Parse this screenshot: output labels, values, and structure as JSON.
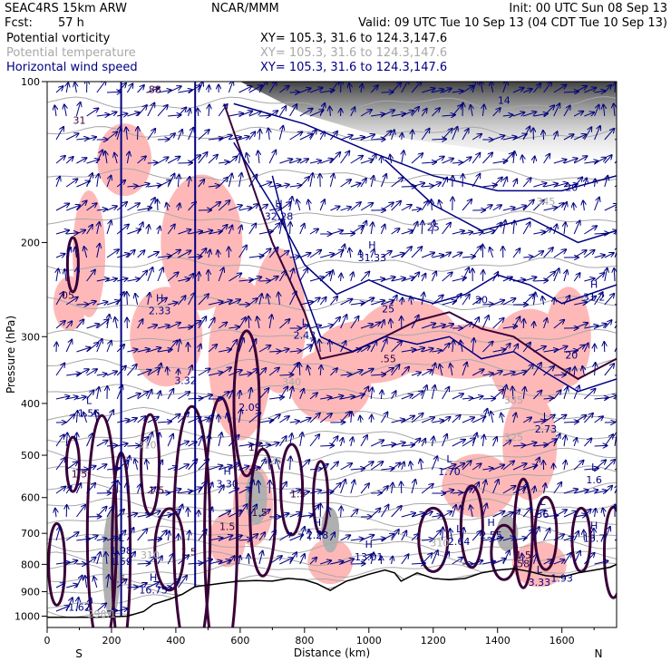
{
  "header": {
    "model": "SEAC4RS 15km ARW",
    "org": "NCAR/MMM",
    "init": "Init: 00 UTC Sun 08 Sep 13",
    "fcst_label": "Fcst:",
    "fcst_value": "57 h",
    "valid": "Valid: 09 UTC Tue 10 Sep 13 (04 CDT Tue 10 Sep 13)"
  },
  "fields": [
    {
      "name": "Potential vorticity",
      "xy": "XY= 105.3, 31.6 to 124.3,147.6",
      "color": "#000000"
    },
    {
      "name": "Potential temperature",
      "xy": "XY= 105.3, 31.6 to 124.3,147.6",
      "color": "#a8a8a8"
    },
    {
      "name": "Horizontal wind speed",
      "xy": "XY= 105.3, 31.6 to 124.3,147.6",
      "color": "#000080"
    }
  ],
  "chart_data": {
    "type": "cross-section",
    "xlabel": "Distance (km)",
    "ylabel": "Pressure (hPa)",
    "xlim": [
      0,
      1770
    ],
    "ylim": [
      1050,
      100
    ],
    "x_ticks": [
      "0",
      "200",
      "400",
      "600",
      "800",
      "1000",
      "1200",
      "1400",
      "1600"
    ],
    "y_ticks": [
      "100",
      "200",
      "300",
      "400",
      "500",
      "600",
      "700",
      "800",
      "900",
      "1000"
    ],
    "x_tick_values": [
      0,
      200,
      400,
      600,
      800,
      1000,
      1200,
      1400,
      1600
    ],
    "y_tick_values": [
      100,
      200,
      300,
      400,
      500,
      600,
      700,
      800,
      900,
      1000
    ],
    "left_end_label": "S",
    "right_end_label": "N",
    "terrain": {
      "x": [
        0,
        100,
        150,
        200,
        250,
        300,
        330,
        380,
        420,
        460,
        500,
        560,
        600,
        650,
        700,
        750,
        800,
        840,
        880,
        900,
        930,
        960,
        1000,
        1050,
        1080,
        1100,
        1150,
        1200,
        1250,
        1300,
        1350,
        1400,
        1450,
        1500,
        1550,
        1600,
        1650,
        1700,
        1750,
        1770
      ],
      "p": [
        1005,
        1005,
        1005,
        1003,
        1000,
        980,
        950,
        930,
        910,
        880,
        875,
        865,
        860,
        858,
        860,
        850,
        855,
        870,
        895,
        880,
        860,
        850,
        835,
        820,
        830,
        860,
        830,
        850,
        855,
        850,
        830,
        820,
        815,
        825,
        840,
        845,
        830,
        820,
        810,
        800
      ]
    },
    "wind_speed_labels": [
      {
        "x": 1420,
        "p": 110,
        "text": "14"
      },
      {
        "x": 1630,
        "p": 160,
        "text": "20"
      },
      {
        "x": 1200,
        "p": 190,
        "text": "25"
      },
      {
        "x": 1350,
        "p": 260,
        "text": "20"
      },
      {
        "x": 1060,
        "p": 270,
        "text": "25"
      },
      {
        "x": 1630,
        "p": 330,
        "text": "20"
      }
    ],
    "pv_labels": [
      {
        "x": 60,
        "p": 255,
        "text": ".05"
      },
      {
        "x": 330,
        "p": 105,
        "text": ".88"
      },
      {
        "x": 100,
        "p": 120,
        "text": "31"
      },
      {
        "x": 1060,
        "p": 335,
        "text": ".55"
      },
      {
        "x": 100,
        "p": 550,
        "text": "1.5"
      },
      {
        "x": 340,
        "p": 590,
        "text": "1.5"
      },
      {
        "x": 650,
        "p": 490,
        "text": "1.5"
      },
      {
        "x": 660,
        "p": 650,
        "text": "1.5"
      },
      {
        "x": 560,
        "p": 690,
        "text": "1.5"
      },
      {
        "x": 440,
        "p": 770,
        "text": "1.5"
      },
      {
        "x": 780,
        "p": 600,
        "text": "1.5"
      },
      {
        "x": 1480,
        "p": 780,
        "text": "1.5"
      },
      {
        "x": 220,
        "p": 865,
        "text": "1.5"
      },
      {
        "x": 1480,
        "p": 810,
        "text": "58"
      }
    ],
    "theta_labels": [
      {
        "x": 310,
        "p": 485,
        "text": "310"
      },
      {
        "x": 700,
        "p": 520,
        "text": "325"
      },
      {
        "x": 760,
        "p": 370,
        "text": "340"
      },
      {
        "x": 1450,
        "p": 470,
        "text": "325"
      },
      {
        "x": 1450,
        "p": 400,
        "text": "335"
      },
      {
        "x": 1220,
        "p": 740,
        "text": "310"
      },
      {
        "x": 320,
        "p": 780,
        "text": "310"
      },
      {
        "x": 1550,
        "p": 170,
        "text": "345"
      },
      {
        "x": 170,
        "p": 1005,
        "text": "298.1"
      }
    ],
    "extrema": [
      {
        "x": 350,
        "p": 270,
        "type": "H",
        "value": "2.33"
      },
      {
        "x": 430,
        "p": 365,
        "type": "",
        "value": "3.32"
      },
      {
        "x": 720,
        "p": 180,
        "type": "H",
        "value": "32.28"
      },
      {
        "x": 800,
        "p": 300,
        "type": "L",
        "value": "2.43"
      },
      {
        "x": 1010,
        "p": 215,
        "type": "H",
        "value": "31.33"
      },
      {
        "x": 1700,
        "p": 255,
        "type": "H",
        "value": "31.2"
      },
      {
        "x": 630,
        "p": 410,
        "type": "",
        "value": "2.09"
      },
      {
        "x": 130,
        "p": 420,
        "type": "L",
        "value": "1.56"
      },
      {
        "x": 1550,
        "p": 450,
        "type": "L",
        "value": "2.73"
      },
      {
        "x": 1250,
        "p": 540,
        "type": "L",
        "value": "1.70"
      },
      {
        "x": 1700,
        "p": 560,
        "type": "L",
        "value": "1.6"
      },
      {
        "x": 560,
        "p": 570,
        "type": "H",
        "value": "3.30"
      },
      {
        "x": 1540,
        "p": 650,
        "type": "L",
        "value": "56"
      },
      {
        "x": 840,
        "p": 710,
        "type": "H",
        "value": "2.28"
      },
      {
        "x": 1280,
        "p": 730,
        "type": "L",
        "value": "2.64"
      },
      {
        "x": 1380,
        "p": 710,
        "type": "H",
        "value": "2.55"
      },
      {
        "x": 1700,
        "p": 720,
        "type": "H",
        "value": "13.7"
      },
      {
        "x": 230,
        "p": 760,
        "type": "L",
        "value": "1.98"
      },
      {
        "x": 230,
        "p": 795,
        "type": "",
        "value": "1.59"
      },
      {
        "x": 1000,
        "p": 780,
        "type": "H",
        "value": "13.01"
      },
      {
        "x": 330,
        "p": 900,
        "type": "H",
        "value": "16.75"
      },
      {
        "x": 1530,
        "p": 870,
        "type": "L",
        "value": "3.33"
      },
      {
        "x": 1600,
        "p": 855,
        "type": "",
        "value": "1.93"
      },
      {
        "x": 100,
        "p": 970,
        "type": "",
        "value": "1.62"
      }
    ]
  }
}
